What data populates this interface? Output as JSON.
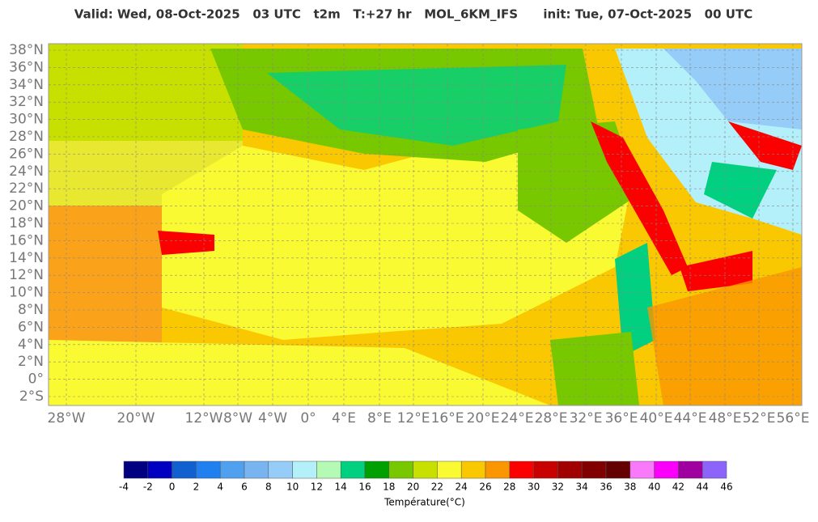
{
  "header": {
    "title": "Valid: Wed, 08-Oct-2025   03 UTC   t2m   T:+27 hr   MOL_6KM_IFS      init: Tue, 07-Oct-2025   00 UTC"
  },
  "map": {
    "lat_labels": [
      "38°N",
      "36°N",
      "34°N",
      "32°N",
      "30°N",
      "28°N",
      "26°N",
      "24°N",
      "22°N",
      "20°N",
      "18°N",
      "16°N",
      "14°N",
      "12°N",
      "10°N",
      "8°N",
      "6°N",
      "4°N",
      "2°N",
      "0°",
      "2°S"
    ],
    "lon_labels": [
      "28°W",
      "20°W",
      "12°W",
      "8°W",
      "4°W",
      "0°",
      "4°E",
      "8°E",
      "12°E",
      "16°E",
      "20°E",
      "24°E",
      "28°E",
      "32°E",
      "36°E",
      "40°E",
      "44°E",
      "48°E",
      "52°E",
      "56°E"
    ]
  },
  "colorbar": {
    "ticks": [
      -4,
      -2,
      0,
      2,
      4,
      6,
      8,
      10,
      12,
      14,
      16,
      18,
      20,
      22,
      24,
      26,
      28,
      30,
      32,
      34,
      36,
      38,
      40,
      42,
      44,
      46
    ],
    "colors": [
      "#000080",
      "#0000c0",
      "#1060d0",
      "#2080f0",
      "#50a0f0",
      "#78b4f0",
      "#96ccf8",
      "#b4f0fa",
      "#b4fab4",
      "#00d080",
      "#00a000",
      "#78c800",
      "#c8e000",
      "#fafa32",
      "#fac800",
      "#fa9600",
      "#fa0000",
      "#c80000",
      "#a00000",
      "#800000",
      "#640000",
      "#fa78fa",
      "#fa00fa",
      "#a000a0",
      "#8c64fa"
    ],
    "label": "Température(°C)"
  }
}
